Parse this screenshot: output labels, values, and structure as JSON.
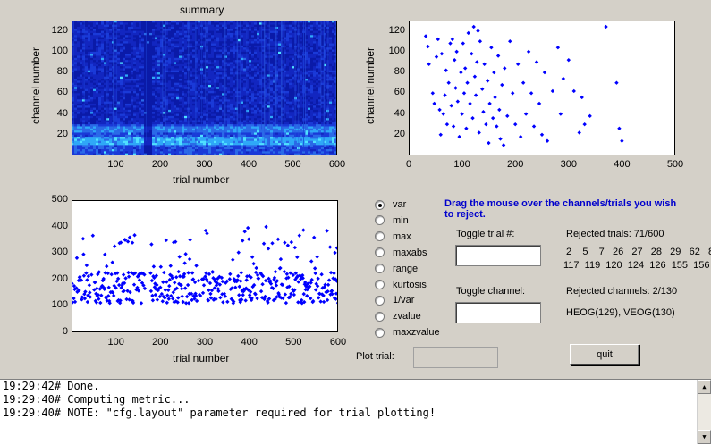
{
  "summary_plot": {
    "title": "summary",
    "xlabel": "trial number",
    "ylabel": "channel number",
    "xticks": [
      "100",
      "200",
      "300",
      "400",
      "500",
      "600"
    ],
    "yticks": [
      "20",
      "40",
      "60",
      "80",
      "100",
      "120"
    ],
    "colors": {
      "dark": "#0a1aa8",
      "mid": "#1830d8",
      "bright": "#2fc8ff"
    }
  },
  "channel_plot": {
    "xlabel": "",
    "ylabel": "channel number",
    "xticks": [
      "0",
      "100",
      "200",
      "300",
      "400",
      "500"
    ],
    "yticks": [
      "20",
      "40",
      "60",
      "80",
      "100",
      "120"
    ]
  },
  "trial_plot": {
    "xlabel": "trial number",
    "ylabel": "",
    "xticks": [
      "100",
      "200",
      "300",
      "400",
      "500",
      "600"
    ],
    "yticks": [
      "0",
      "100",
      "200",
      "300",
      "400",
      "500"
    ]
  },
  "chart_data": [
    {
      "type": "heatmap",
      "title": "summary",
      "xlabel": "trial number",
      "ylabel": "channel number",
      "xlim": [
        0,
        600
      ],
      "ylim": [
        0,
        130
      ],
      "grid": false
    },
    {
      "type": "scatter",
      "xlabel": "",
      "ylabel": "channel number",
      "xlim": [
        0,
        500
      ],
      "ylim": [
        0,
        130
      ],
      "color": "#0000ff",
      "x": [
        32,
        36,
        38,
        45,
        48,
        52,
        55,
        58,
        60,
        62,
        65,
        68,
        70,
        72,
        75,
        78,
        80,
        82,
        84,
        86,
        88,
        90,
        92,
        95,
        98,
        100,
        102,
        104,
        106,
        108,
        110,
        112,
        115,
        118,
        120,
        122,
        124,
        126,
        128,
        130,
        132,
        134,
        138,
        140,
        142,
        145,
        148,
        150,
        152,
        155,
        158,
        160,
        162,
        165,
        168,
        170,
        172,
        175,
        178,
        180,
        185,
        190,
        195,
        200,
        205,
        210,
        215,
        220,
        225,
        230,
        235,
        240,
        245,
        250,
        255,
        260,
        270,
        280,
        285,
        290,
        300,
        310,
        320,
        325,
        330,
        340,
        370,
        390,
        395,
        400
      ],
      "y": [
        115,
        105,
        88,
        60,
        50,
        95,
        112,
        44,
        20,
        98,
        40,
        58,
        82,
        30,
        70,
        108,
        48,
        112,
        28,
        92,
        65,
        100,
        52,
        18,
        80,
        40,
        108,
        60,
        84,
        26,
        70,
        118,
        50,
        98,
        36,
        124,
        76,
        58,
        90,
        120,
        22,
        110,
        64,
        42,
        88,
        30,
        72,
        12,
        50,
        104,
        36,
        80,
        56,
        28,
        96,
        44,
        16,
        68,
        10,
        84,
        38,
        110,
        60,
        30,
        88,
        18,
        70,
        40,
        100,
        60,
        28,
        90,
        50,
        20,
        80,
        14,
        62,
        104,
        40,
        74,
        92,
        62,
        22,
        56,
        30,
        38,
        124,
        70,
        26,
        14
      ]
    },
    {
      "type": "scatter",
      "xlabel": "trial number",
      "ylabel": "",
      "xlim": [
        0,
        600
      ],
      "ylim": [
        0,
        500
      ],
      "color": "#0000ff"
    }
  ],
  "metric_options": [
    {
      "label": "var",
      "checked": true
    },
    {
      "label": "min",
      "checked": false
    },
    {
      "label": "max",
      "checked": false
    },
    {
      "label": "maxabs",
      "checked": false
    },
    {
      "label": "range",
      "checked": false
    },
    {
      "label": "kurtosis",
      "checked": false
    },
    {
      "label": "1/var",
      "checked": false
    },
    {
      "label": "zvalue",
      "checked": false
    },
    {
      "label": "maxzvalue",
      "checked": false
    }
  ],
  "instruction": {
    "line1": "Drag the mouse over the channels/trials you wish",
    "line2": "to reject.",
    "color": "#0000cc"
  },
  "toggle_trial_label": "Toggle trial #:",
  "toggle_channel_label": "Toggle channel:",
  "rejected_trials": {
    "label": "Rejected trials: 71/600",
    "line1": "2    5    7   26   27   28   29   62   8",
    "line2": "117  119  120  124  126  155  156"
  },
  "rejected_channels": {
    "label": "Rejected channels: 2/130",
    "list": "HEOG(129), VEOG(130)"
  },
  "plot_trial_label": "Plot trial:",
  "quit_label": "quit",
  "console_lines": [
    "19:29:42# Done.",
    "19:29:40# Computing metric...",
    "19:29:40# NOTE: \"cfg.layout\" parameter required for trial plotting!"
  ]
}
